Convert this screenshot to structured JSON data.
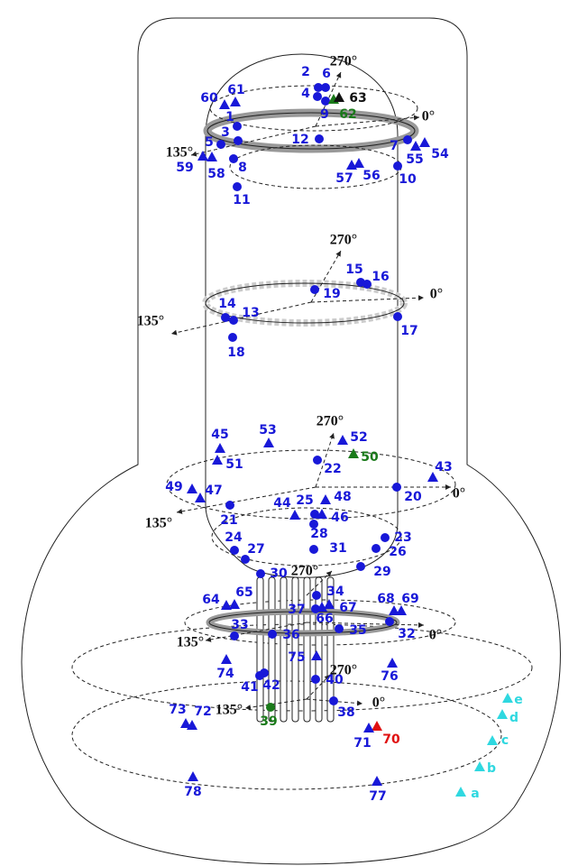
{
  "angle_labels": [
    "270°",
    "0°",
    "135°",
    "270°",
    "0°",
    "135°",
    "270°",
    "0°",
    "135°",
    "270°",
    "0°",
    "135°",
    "270°",
    "0°",
    "135°"
  ],
  "points": [
    {
      "label": "1",
      "marker": "circle",
      "color": "#1818d8"
    },
    {
      "label": "2",
      "marker": "circle",
      "color": "#1818d8"
    },
    {
      "label": "3",
      "marker": "circle",
      "color": "#1818d8"
    },
    {
      "label": "4",
      "marker": "circle",
      "color": "#1818d8"
    },
    {
      "label": "5",
      "marker": "circle",
      "color": "#1818d8"
    },
    {
      "label": "6",
      "marker": "circle",
      "color": "#1818d8"
    },
    {
      "label": "7",
      "marker": "circle",
      "color": "#1818d8"
    },
    {
      "label": "8",
      "marker": "circle",
      "color": "#1818d8"
    },
    {
      "label": "9",
      "marker": "circle",
      "color": "#1818d8"
    },
    {
      "label": "10",
      "marker": "circle",
      "color": "#1818d8"
    },
    {
      "label": "11",
      "marker": "circle",
      "color": "#1818d8"
    },
    {
      "label": "12",
      "marker": "circle",
      "color": "#1818d8"
    },
    {
      "label": "13",
      "marker": "circle",
      "color": "#1818d8"
    },
    {
      "label": "14",
      "marker": "circle",
      "color": "#1818d8"
    },
    {
      "label": "15",
      "marker": "circle",
      "color": "#1818d8"
    },
    {
      "label": "16",
      "marker": "circle",
      "color": "#1818d8"
    },
    {
      "label": "17",
      "marker": "circle",
      "color": "#1818d8"
    },
    {
      "label": "18",
      "marker": "circle",
      "color": "#1818d8"
    },
    {
      "label": "19",
      "marker": "circle",
      "color": "#1818d8"
    },
    {
      "label": "20",
      "marker": "circle",
      "color": "#1818d8"
    },
    {
      "label": "21",
      "marker": "circle",
      "color": "#1818d8"
    },
    {
      "label": "22",
      "marker": "circle",
      "color": "#1818d8"
    },
    {
      "label": "23",
      "marker": "circle",
      "color": "#1818d8"
    },
    {
      "label": "24",
      "marker": "circle",
      "color": "#1818d8"
    },
    {
      "label": "25",
      "marker": "circle",
      "color": "#1818d8"
    },
    {
      "label": "26",
      "marker": "circle",
      "color": "#1818d8"
    },
    {
      "label": "27",
      "marker": "circle",
      "color": "#1818d8"
    },
    {
      "label": "28",
      "marker": "circle",
      "color": "#1818d8"
    },
    {
      "label": "29",
      "marker": "circle",
      "color": "#1818d8"
    },
    {
      "label": "30",
      "marker": "circle",
      "color": "#1818d8"
    },
    {
      "label": "31",
      "marker": "circle",
      "color": "#1818d8"
    },
    {
      "label": "32",
      "marker": "circle",
      "color": "#1818d8"
    },
    {
      "label": "33",
      "marker": "circle",
      "color": "#1818d8"
    },
    {
      "label": "34",
      "marker": "circle",
      "color": "#1818d8"
    },
    {
      "label": "35",
      "marker": "circle",
      "color": "#1818d8"
    },
    {
      "label": "36",
      "marker": "circle",
      "color": "#1818d8"
    },
    {
      "label": "37",
      "marker": "circle",
      "color": "#1818d8"
    },
    {
      "label": "38",
      "marker": "circle",
      "color": "#1818d8"
    },
    {
      "label": "39",
      "marker": "circle",
      "color": "#1a7a1a"
    },
    {
      "label": "40",
      "marker": "circle",
      "color": "#1818d8"
    },
    {
      "label": "41",
      "marker": "circle",
      "color": "#1818d8"
    },
    {
      "label": "42",
      "marker": "circle",
      "color": "#1818d8"
    },
    {
      "label": "43",
      "marker": "triangle",
      "color": "#1818d8"
    },
    {
      "label": "44",
      "marker": "triangle",
      "color": "#1818d8"
    },
    {
      "label": "45",
      "marker": "triangle",
      "color": "#1818d8"
    },
    {
      "label": "46",
      "marker": "triangle",
      "color": "#1818d8"
    },
    {
      "label": "47",
      "marker": "triangle",
      "color": "#1818d8"
    },
    {
      "label": "48",
      "marker": "triangle",
      "color": "#1818d8"
    },
    {
      "label": "49",
      "marker": "triangle",
      "color": "#1818d8"
    },
    {
      "label": "50",
      "marker": "triangle",
      "color": "#1a7a1a"
    },
    {
      "label": "51",
      "marker": "triangle",
      "color": "#1818d8"
    },
    {
      "label": "52",
      "marker": "triangle",
      "color": "#1818d8"
    },
    {
      "label": "53",
      "marker": "triangle",
      "color": "#1818d8"
    },
    {
      "label": "54",
      "marker": "triangle",
      "color": "#1818d8"
    },
    {
      "label": "55",
      "marker": "triangle",
      "color": "#1818d8"
    },
    {
      "label": "56",
      "marker": "triangle",
      "color": "#1818d8"
    },
    {
      "label": "57",
      "marker": "triangle",
      "color": "#1818d8"
    },
    {
      "label": "58",
      "marker": "triangle",
      "color": "#1818d8"
    },
    {
      "label": "59",
      "marker": "triangle",
      "color": "#1818d8"
    },
    {
      "label": "60",
      "marker": "triangle",
      "color": "#1818d8"
    },
    {
      "label": "61",
      "marker": "triangle",
      "color": "#1818d8"
    },
    {
      "label": "62",
      "marker": "triangle",
      "color": "#1a7a1a"
    },
    {
      "label": "63",
      "marker": "triangle",
      "color": "#111111"
    },
    {
      "label": "64",
      "marker": "triangle",
      "color": "#1818d8"
    },
    {
      "label": "65",
      "marker": "triangle",
      "color": "#1818d8"
    },
    {
      "label": "66",
      "marker": "triangle",
      "color": "#1818d8"
    },
    {
      "label": "67",
      "marker": "triangle",
      "color": "#1818d8"
    },
    {
      "label": "68",
      "marker": "triangle",
      "color": "#1818d8"
    },
    {
      "label": "69",
      "marker": "triangle",
      "color": "#1818d8"
    },
    {
      "label": "70",
      "marker": "triangle",
      "color": "#e01010"
    },
    {
      "label": "71",
      "marker": "triangle",
      "color": "#1818d8"
    },
    {
      "label": "72",
      "marker": "triangle",
      "color": "#1818d8"
    },
    {
      "label": "73",
      "marker": "triangle",
      "color": "#1818d8"
    },
    {
      "label": "74",
      "marker": "triangle",
      "color": "#1818d8"
    },
    {
      "label": "75",
      "marker": "triangle",
      "color": "#1818d8"
    },
    {
      "label": "76",
      "marker": "triangle",
      "color": "#1818d8"
    },
    {
      "label": "77",
      "marker": "triangle",
      "color": "#1818d8"
    },
    {
      "label": "78",
      "marker": "triangle",
      "color": "#1818d8"
    },
    {
      "label": "a",
      "marker": "triangle",
      "color": "#2fd8e0"
    },
    {
      "label": "b",
      "marker": "triangle",
      "color": "#2fd8e0"
    },
    {
      "label": "c",
      "marker": "triangle",
      "color": "#2fd8e0"
    },
    {
      "label": "d",
      "marker": "triangle",
      "color": "#2fd8e0"
    },
    {
      "label": "e",
      "marker": "triangle",
      "color": "#2fd8e0"
    }
  ]
}
